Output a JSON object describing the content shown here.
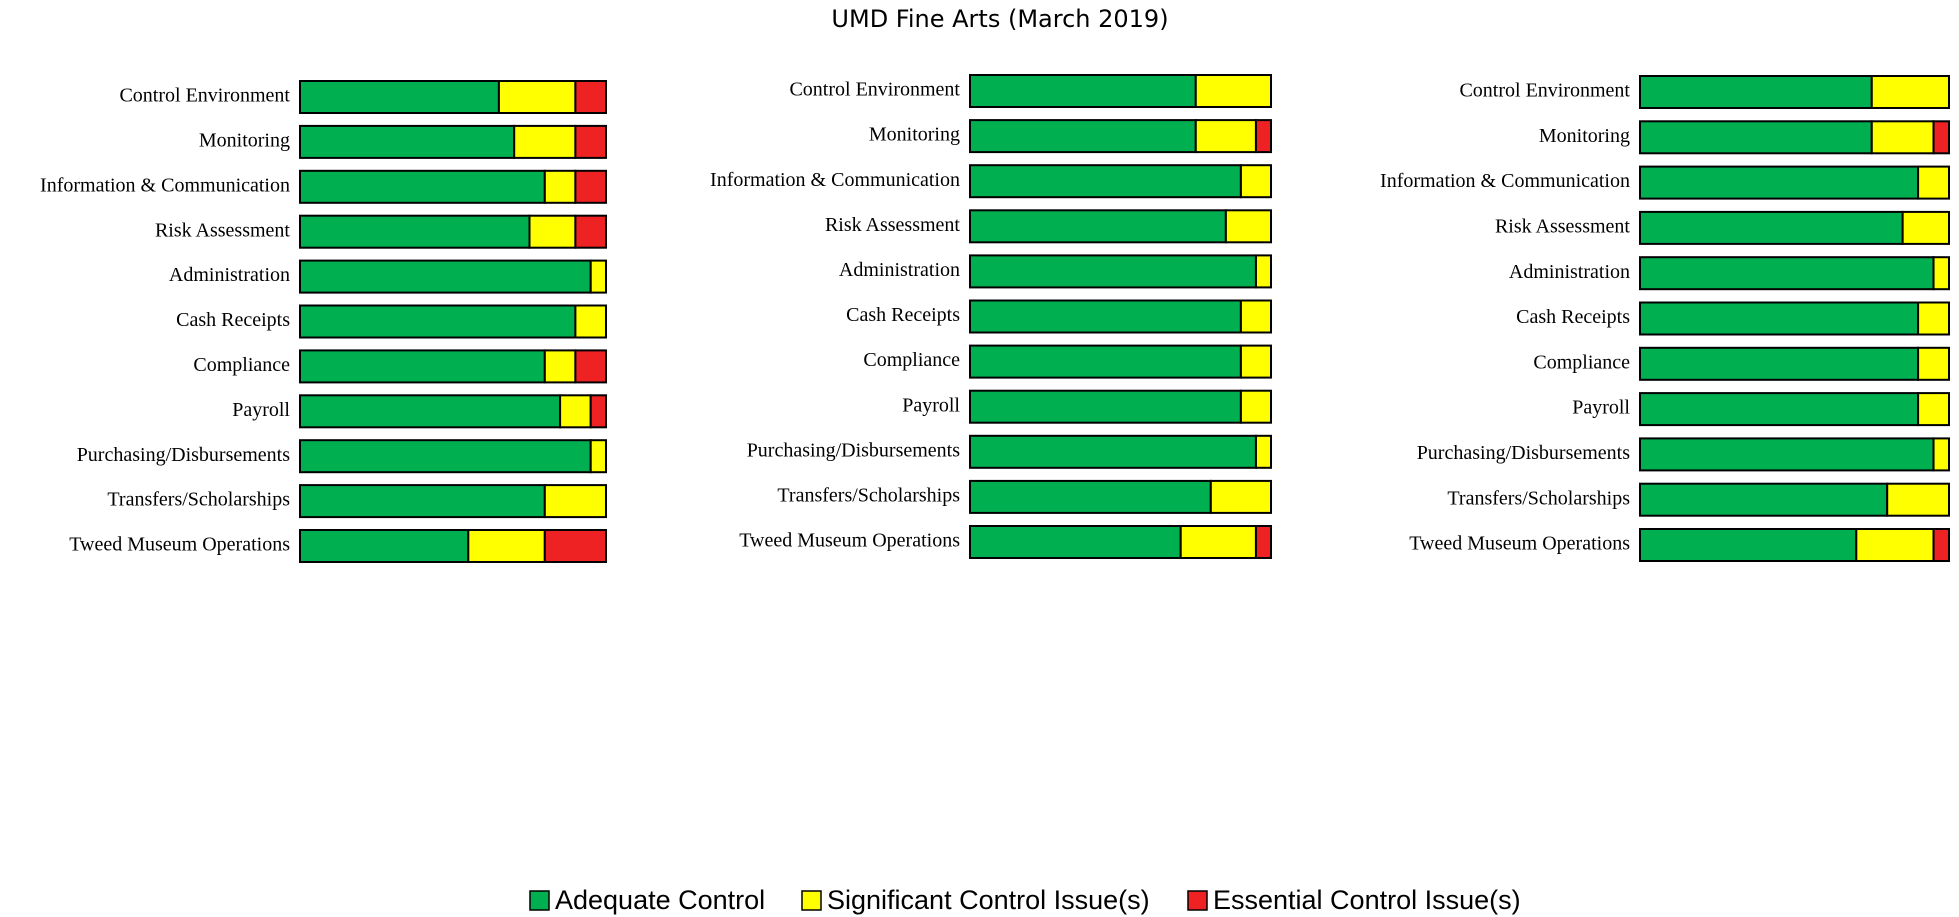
{
  "title": "UMD Fine Arts (March 2019)",
  "legend": [
    {
      "name": "Adequate Control",
      "color": "#00b050"
    },
    {
      "name": "Significant Control Issue(s)",
      "color": "#ffff00"
    },
    {
      "name": "Essential Control Issue(s)",
      "color": "#ee2222"
    }
  ],
  "chart_data": [
    {
      "type": "stacked-bar-horizontal",
      "xlim": [
        0,
        20
      ],
      "categories": [
        "Control Environment",
        "Monitoring",
        "Information & Communication",
        "Risk Assessment",
        "Administration",
        "Cash Receipts",
        "Compliance",
        "Payroll",
        "Purchasing/Disbursements",
        "Transfers/Scholarships",
        "Tweed Museum Operations"
      ],
      "series": [
        {
          "values": [
            13,
            14,
            16,
            15,
            19,
            18,
            16,
            17,
            19,
            16,
            11
          ]
        },
        {
          "values": [
            5,
            4,
            2,
            3,
            1,
            2,
            2,
            2,
            1,
            4,
            5
          ]
        },
        {
          "values": [
            2,
            2,
            2,
            2,
            0,
            0,
            2,
            1,
            0,
            0,
            4
          ]
        }
      ]
    },
    {
      "type": "stacked-bar-horizontal",
      "xlim": [
        0,
        20
      ],
      "categories": [
        "Control Environment",
        "Monitoring",
        "Information & Communication",
        "Risk Assessment",
        "Administration",
        "Cash Receipts",
        "Compliance",
        "Payroll",
        "Purchasing/Disbursements",
        "Transfers/Scholarships",
        "Tweed Museum Operations"
      ],
      "series": [
        {
          "values": [
            15,
            15,
            18,
            17,
            19,
            18,
            18,
            18,
            19,
            16,
            14
          ]
        },
        {
          "values": [
            5,
            4,
            2,
            3,
            1,
            2,
            2,
            2,
            1,
            4,
            5
          ]
        },
        {
          "values": [
            0,
            1,
            0,
            0,
            0,
            0,
            0,
            0,
            0,
            0,
            1
          ]
        }
      ]
    },
    {
      "type": "stacked-bar-horizontal",
      "xlim": [
        0,
        20
      ],
      "categories": [
        "Control Environment",
        "Monitoring",
        "Information & Communication",
        "Risk Assessment",
        "Administration",
        "Cash Receipts",
        "Compliance",
        "Payroll",
        "Purchasing/Disbursements",
        "Transfers/Scholarships",
        "Tweed Museum Operations"
      ],
      "series": [
        {
          "values": [
            15,
            15,
            18,
            17,
            19,
            18,
            18,
            18,
            19,
            16,
            14
          ]
        },
        {
          "values": [
            5,
            4,
            2,
            3,
            1,
            2,
            2,
            2,
            1,
            4,
            5
          ]
        },
        {
          "values": [
            0,
            1,
            0,
            0,
            0,
            0,
            0,
            0,
            0,
            0,
            1
          ]
        }
      ]
    }
  ]
}
